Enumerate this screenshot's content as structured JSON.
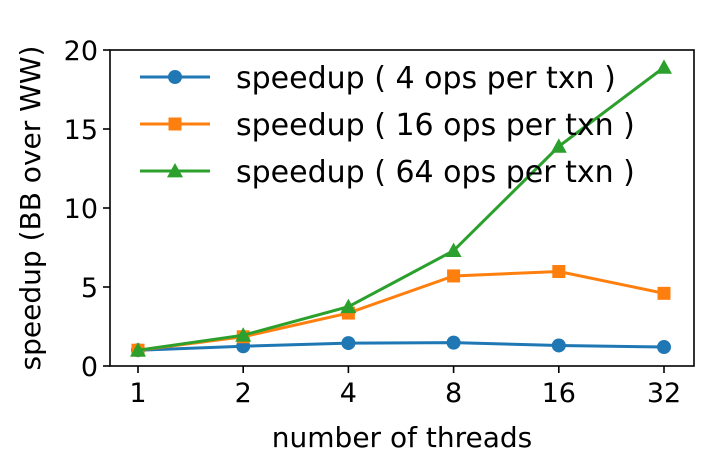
{
  "chart_data": {
    "type": "line",
    "categories": [
      "1",
      "2",
      "4",
      "8",
      "16",
      "32"
    ],
    "xlabel": "number of threads",
    "ylabel": "speedup (BB over WW)",
    "ylim": [
      0,
      20
    ],
    "yticks": [
      "0",
      "5",
      "10",
      "15",
      "20"
    ],
    "x_scale": "log2",
    "grid": false,
    "legend_position": "top-right",
    "series": [
      {
        "name": "speedup ( 4 ops per txn )",
        "color": "#1f77b4",
        "marker": "circle",
        "values": [
          1.0,
          1.25,
          1.45,
          1.48,
          1.3,
          1.2
        ]
      },
      {
        "name": "speedup ( 16 ops per txn )",
        "color": "#ff7f0e",
        "marker": "square",
        "values": [
          1.0,
          1.85,
          3.35,
          5.7,
          5.98,
          4.6
        ]
      },
      {
        "name": "speedup ( 64 ops per txn )",
        "color": "#2ca02c",
        "marker": "triangle",
        "values": [
          1.0,
          1.95,
          3.75,
          7.3,
          13.9,
          18.9
        ]
      }
    ]
  }
}
